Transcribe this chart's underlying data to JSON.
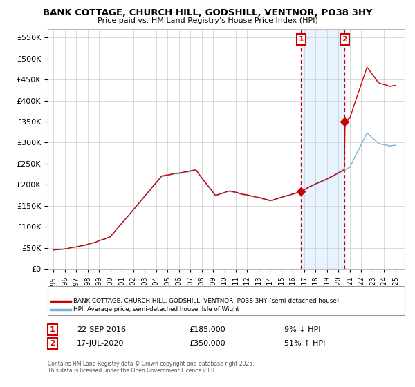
{
  "title": "BANK COTTAGE, CHURCH HILL, GODSHILL, VENTNOR, PO38 3HY",
  "subtitle": "Price paid vs. HM Land Registry's House Price Index (HPI)",
  "ylim": [
    0,
    570000
  ],
  "yticks": [
    0,
    50000,
    100000,
    150000,
    200000,
    250000,
    300000,
    350000,
    400000,
    450000,
    500000,
    550000
  ],
  "ytick_labels": [
    "£0",
    "£50K",
    "£100K",
    "£150K",
    "£200K",
    "£250K",
    "£300K",
    "£350K",
    "£400K",
    "£450K",
    "£500K",
    "£550K"
  ],
  "hpi_color": "#7ab0d4",
  "price_color": "#cc0000",
  "shade_color": "#ddeeff",
  "marker1_year": 2016.73,
  "marker1_price": 185000,
  "marker1_hpi_pct": "9% ↓ HPI",
  "marker1_date": "22-SEP-2016",
  "marker2_year": 2020.54,
  "marker2_price": 350000,
  "marker2_hpi_pct": "51% ↑ HPI",
  "marker2_date": "17-JUL-2020",
  "legend_label1": "BANK COTTAGE, CHURCH HILL, GODSHILL, VENTNOR, PO38 3HY (semi-detached house)",
  "legend_label2": "HPI: Average price, semi-detached house, Isle of Wight",
  "footnote": "Contains HM Land Registry data © Crown copyright and database right 2025.\nThis data is licensed under the Open Government Licence v3.0.",
  "background_color": "#ffffff",
  "grid_color": "#cccccc",
  "vline_color": "#cc0000",
  "annotation_box_color": "#cc0000",
  "xlim_left": 1994.5,
  "xlim_right": 2025.8
}
